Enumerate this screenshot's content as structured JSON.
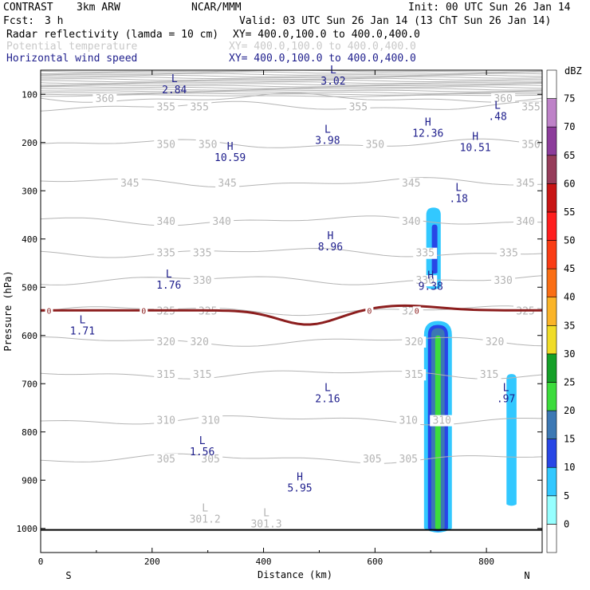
{
  "header": {
    "program": "CONTRAST",
    "model": "3km ARW",
    "org": "NCAR/MMM",
    "init": "Init: 00 UTC Sun 26 Jan 14",
    "fcst_label": "Fcst:",
    "fcst_value": "3 h",
    "valid": "Valid: 03 UTC Sun 26 Jan 14 (13 ChT Sun 26 Jan 14)",
    "fields": [
      {
        "name": "Radar reflectivity (lamda = 10 cm)",
        "xy": "XY= 400.0,100.0 to 400.0,400.0",
        "color": "#000000"
      },
      {
        "name": "Potential temperature",
        "xy": "XY= 400.0,100.0 to 400.0,400.0",
        "color": "#c8c8c8"
      },
      {
        "name": "Horizontal wind speed",
        "xy": "XY= 400.0,100.0 to 400.0,400.0",
        "color": "#1e1e8c"
      }
    ]
  },
  "chart_data": {
    "type": "cross-section",
    "xlabel": "Distance (km)",
    "ylabel": "Pressure (hPa)",
    "xlim": [
      0,
      900
    ],
    "ylim": [
      1050,
      50
    ],
    "x_ticks": [
      0,
      200,
      400,
      600,
      800
    ],
    "y_ticks": [
      100,
      200,
      300,
      400,
      500,
      600,
      700,
      800,
      900,
      1000
    ],
    "endpoints": {
      "left": "S",
      "right": "N"
    },
    "colorbar": {
      "unit": "dBZ",
      "levels": [
        0,
        5,
        10,
        15,
        20,
        25,
        30,
        35,
        40,
        45,
        50,
        55,
        60,
        65,
        70,
        75
      ],
      "colors": [
        "#ffffff",
        "#96ffff",
        "#32c8ff",
        "#2846e6",
        "#3c78b4",
        "#3cdc3c",
        "#14a028",
        "#f0dc28",
        "#fab428",
        "#fa6e14",
        "#fa3c14",
        "#ff1e1e",
        "#c81414",
        "#963c5a",
        "#8c3c9b",
        "#be82c8",
        "#ffffff"
      ]
    },
    "theta_contours": [
      {
        "value": 360,
        "p": 108,
        "labels": [
          {
            "x": 115,
            "text": "360"
          },
          {
            "x": 830,
            "text": "360"
          }
        ]
      },
      {
        "value": 355,
        "p": 125,
        "labels": [
          {
            "x": 225,
            "text": "355"
          },
          {
            "x": 285,
            "text": "355"
          },
          {
            "x": 570,
            "text": "355"
          },
          {
            "x": 880,
            "text": "355"
          }
        ]
      },
      {
        "value": 350,
        "p": 203,
        "labels": [
          {
            "x": 225,
            "text": "350"
          },
          {
            "x": 300,
            "text": "350"
          },
          {
            "x": 600,
            "text": "350"
          },
          {
            "x": 880,
            "text": "350"
          }
        ]
      },
      {
        "value": 345,
        "p": 283,
        "labels": [
          {
            "x": 160,
            "text": "345"
          },
          {
            "x": 335,
            "text": "345"
          },
          {
            "x": 665,
            "text": "345"
          },
          {
            "x": 870,
            "text": "345"
          }
        ]
      },
      {
        "value": 340,
        "p": 362,
        "labels": [
          {
            "x": 225,
            "text": "340"
          },
          {
            "x": 325,
            "text": "340"
          },
          {
            "x": 665,
            "text": "340"
          },
          {
            "x": 870,
            "text": "340"
          }
        ]
      },
      {
        "value": 335,
        "p": 428,
        "labels": [
          {
            "x": 225,
            "text": "335"
          },
          {
            "x": 290,
            "text": "335"
          },
          {
            "x": 690,
            "text": "335"
          },
          {
            "x": 840,
            "text": "335"
          }
        ]
      },
      {
        "value": 330,
        "p": 485,
        "labels": [
          {
            "x": 290,
            "text": "330"
          },
          {
            "x": 690,
            "text": "330"
          },
          {
            "x": 830,
            "text": "330"
          }
        ]
      },
      {
        "value": 325,
        "p": 548,
        "labels": [
          {
            "x": 225,
            "text": "325"
          },
          {
            "x": 300,
            "text": "325"
          },
          {
            "x": 665,
            "text": "325"
          },
          {
            "x": 870,
            "text": "325"
          }
        ]
      },
      {
        "value": 320,
        "p": 612,
        "labels": [
          {
            "x": 225,
            "text": "320"
          },
          {
            "x": 285,
            "text": "320"
          },
          {
            "x": 670,
            "text": "320"
          },
          {
            "x": 815,
            "text": "320"
          }
        ]
      },
      {
        "value": 315,
        "p": 680,
        "labels": [
          {
            "x": 225,
            "text": "315"
          },
          {
            "x": 290,
            "text": "315"
          },
          {
            "x": 670,
            "text": "315"
          },
          {
            "x": 805,
            "text": "315"
          }
        ]
      },
      {
        "value": 310,
        "p": 775,
        "labels": [
          {
            "x": 225,
            "text": "310"
          },
          {
            "x": 305,
            "text": "310"
          },
          {
            "x": 660,
            "text": "310"
          },
          {
            "x": 720,
            "text": "310"
          }
        ]
      },
      {
        "value": 305,
        "p": 855,
        "labels": [
          {
            "x": 225,
            "text": "305"
          },
          {
            "x": 305,
            "text": "305"
          },
          {
            "x": 595,
            "text": "305"
          },
          {
            "x": 660,
            "text": "305"
          }
        ]
      }
    ],
    "freezing_level": {
      "p": 548,
      "labels": [
        {
          "x": 15,
          "text": "0"
        },
        {
          "x": 185,
          "text": "0"
        },
        {
          "x": 590,
          "text": "0"
        },
        {
          "x": 675,
          "text": "0"
        }
      ]
    },
    "wind_extrema": [
      {
        "type": "L",
        "value": "2.84",
        "x": 240,
        "p": 75
      },
      {
        "type": "L",
        "value": "3.02",
        "x": 525,
        "p": 57
      },
      {
        "type": "L",
        "value": ".48",
        "x": 820,
        "p": 130
      },
      {
        "type": "L",
        "value": "3.98",
        "x": 515,
        "p": 180
      },
      {
        "type": "H",
        "value": "12.36",
        "x": 695,
        "p": 165
      },
      {
        "type": "H",
        "value": "10.51",
        "x": 780,
        "p": 195
      },
      {
        "type": "H",
        "value": "10.59",
        "x": 340,
        "p": 215
      },
      {
        "type": "L",
        "value": ".18",
        "x": 750,
        "p": 300
      },
      {
        "type": "H",
        "value": "8.96",
        "x": 520,
        "p": 400
      },
      {
        "type": "L",
        "value": "1.76",
        "x": 230,
        "p": 480
      },
      {
        "type": "H",
        "value": "9.38",
        "x": 700,
        "p": 482
      },
      {
        "type": "L",
        "value": "1.71",
        "x": 75,
        "p": 575
      },
      {
        "type": "L",
        "value": "2.16",
        "x": 515,
        "p": 715
      },
      {
        "type": "L",
        "value": ".97",
        "x": 835,
        "p": 715
      },
      {
        "type": "L",
        "value": "1.56",
        "x": 290,
        "p": 825
      },
      {
        "type": "H",
        "value": "5.95",
        "x": 465,
        "p": 900
      }
    ],
    "theta_extrema": [
      {
        "type": "L",
        "value": "301.2",
        "x": 295,
        "p": 965
      },
      {
        "type": "L",
        "value": "301.3",
        "x": 405,
        "p": 975
      }
    ],
    "reflectivity_cells": [
      {
        "x_center": 705,
        "p_top": 335,
        "p_bottom": 500,
        "half_width": 13,
        "level_dbz": 5
      },
      {
        "x_center": 707,
        "p_top": 370,
        "p_bottom": 470,
        "half_width": 5,
        "level_dbz": 10
      },
      {
        "x_center": 713,
        "p_top": 570,
        "p_bottom": 1000,
        "half_width": 25,
        "level_dbz": 5
      },
      {
        "x_center": 713,
        "p_top": 578,
        "p_bottom": 1000,
        "half_width": 18,
        "level_dbz": 10
      },
      {
        "x_center": 713,
        "p_top": 585,
        "p_bottom": 1000,
        "half_width": 12,
        "level_dbz": 15
      },
      {
        "x_center": 713,
        "p_top": 600,
        "p_bottom": 1000,
        "half_width": 5,
        "level_dbz": 20
      },
      {
        "x_center": 845,
        "p_top": 680,
        "p_bottom": 950,
        "half_width": 9,
        "level_dbz": 5
      }
    ]
  }
}
